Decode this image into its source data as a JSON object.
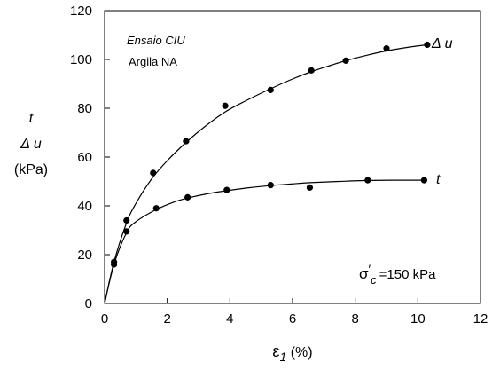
{
  "chart_data": {
    "type": "scatter",
    "x_axis": {
      "label_symbol": "ε",
      "label_sub": "1",
      "label_unit": " (%)",
      "range": [
        0,
        12
      ],
      "ticks": [
        "0",
        "2",
        "4",
        "6",
        "8",
        "10",
        "12"
      ]
    },
    "y_axis": {
      "label_lines": [
        "t",
        "Δ u",
        "(kPa)"
      ],
      "range": [
        0,
        120
      ],
      "ticks": [
        "0",
        "20",
        "40",
        "60",
        "80",
        "100",
        "120"
      ]
    },
    "annotations": {
      "test_type": "Ensaio CIU",
      "soil": "Argila NA",
      "sigma_symbol": "σ",
      "sigma_prime": "′",
      "sigma_sub": "c",
      "sigma_value": "=150 kPa"
    },
    "series": [
      {
        "name": "Δ u",
        "points": [
          [
            0.3,
            17
          ],
          [
            0.7,
            34
          ],
          [
            1.55,
            53.5
          ],
          [
            2.6,
            66.5
          ],
          [
            3.85,
            81
          ],
          [
            5.3,
            87.5
          ],
          [
            6.6,
            95.5
          ],
          [
            7.7,
            99.5
          ],
          [
            9.0,
            104.5
          ],
          [
            10.3,
            106
          ]
        ],
        "curve": [
          [
            0,
            0
          ],
          [
            0.3,
            17
          ],
          [
            0.7,
            33
          ],
          [
            1.0,
            41
          ],
          [
            1.5,
            51
          ],
          [
            2.0,
            58.5
          ],
          [
            2.6,
            66
          ],
          [
            3.2,
            72.5
          ],
          [
            3.85,
            78.5
          ],
          [
            4.5,
            83
          ],
          [
            5.3,
            88
          ],
          [
            6.0,
            92
          ],
          [
            6.6,
            95
          ],
          [
            7.2,
            97.5
          ],
          [
            7.7,
            99.5
          ],
          [
            8.4,
            101.8
          ],
          [
            9.0,
            103.5
          ],
          [
            9.7,
            105
          ],
          [
            10.3,
            106
          ]
        ]
      },
      {
        "name": "t",
        "points": [
          [
            0.3,
            16
          ],
          [
            0.7,
            29.5
          ],
          [
            1.65,
            39
          ],
          [
            2.65,
            43.5
          ],
          [
            3.9,
            46.5
          ],
          [
            5.3,
            48.5
          ],
          [
            6.55,
            47.5
          ],
          [
            8.4,
            50.5
          ],
          [
            10.2,
            50.5
          ]
        ],
        "curve": [
          [
            0,
            0
          ],
          [
            0.3,
            16
          ],
          [
            0.7,
            29
          ],
          [
            1.0,
            33.5
          ],
          [
            1.65,
            38.5
          ],
          [
            2.2,
            41.5
          ],
          [
            2.65,
            43.2
          ],
          [
            3.3,
            45
          ],
          [
            3.9,
            46.2
          ],
          [
            4.6,
            47.4
          ],
          [
            5.3,
            48.3
          ],
          [
            6.0,
            49
          ],
          [
            6.55,
            49.5
          ],
          [
            7.5,
            50
          ],
          [
            8.4,
            50.4
          ],
          [
            9.3,
            50.5
          ],
          [
            10.2,
            50.5
          ]
        ]
      }
    ]
  }
}
